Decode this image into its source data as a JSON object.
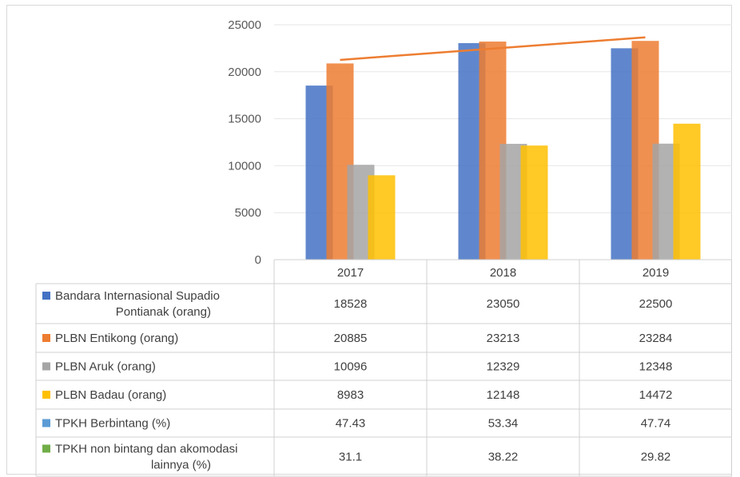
{
  "chart_data": {
    "type": "bar",
    "categories": [
      "2017",
      "2018",
      "2019"
    ],
    "ylim": [
      0,
      25000
    ],
    "yticks": [
      0,
      5000,
      10000,
      15000,
      20000,
      25000
    ],
    "grid": true,
    "legend": "data-table",
    "series": [
      {
        "name": "Bandara Internasional Supadio Pontianak (orang)",
        "name_lines": [
          "Bandara Internasional Supadio",
          "Pontianak (orang)"
        ],
        "values": [
          18528,
          23050,
          22500
        ],
        "display": [
          "18528",
          "23050",
          "22500"
        ],
        "color": "#4472c4",
        "plotted": true
      },
      {
        "name": "PLBN Entikong (orang)",
        "name_lines": [
          "PLBN Entikong (orang)"
        ],
        "values": [
          20885,
          23213,
          23284
        ],
        "display": [
          "20885",
          "23213",
          "23284"
        ],
        "color": "#ed7d31",
        "plotted": true
      },
      {
        "name": "PLBN Aruk (orang)",
        "name_lines": [
          "PLBN Aruk (orang)"
        ],
        "values": [
          10096,
          12329,
          12348
        ],
        "display": [
          "10096",
          "12329",
          "12348"
        ],
        "color": "#a5a5a5",
        "plotted": true
      },
      {
        "name": "PLBN Badau (orang)",
        "name_lines": [
          "PLBN Badau (orang)"
        ],
        "values": [
          8983,
          12148,
          14472
        ],
        "display": [
          "8983",
          "12148",
          "14472"
        ],
        "color": "#ffc000",
        "plotted": true
      },
      {
        "name": "TPKH Berbintang (%)",
        "name_lines": [
          "TPKH Berbintang (%)"
        ],
        "values": [
          47.43,
          53.34,
          47.74
        ],
        "display": [
          "47.43",
          "53.34",
          "47.74"
        ],
        "color": "#5b9bd5",
        "plotted": false
      },
      {
        "name": "TPKH non bintang dan akomodasi lainnya (%)",
        "name_lines": [
          "TPKH non bintang dan akomodasi",
          "lainnya (%)"
        ],
        "values": [
          31.1,
          38.22,
          29.82
        ],
        "display": [
          "31.1",
          "38.22",
          "29.82"
        ],
        "color": "#70ad47",
        "plotted": false
      }
    ],
    "trendline": {
      "series": "PLBN Entikong (orang)",
      "color": "#ed7d31",
      "type": "linear"
    }
  }
}
